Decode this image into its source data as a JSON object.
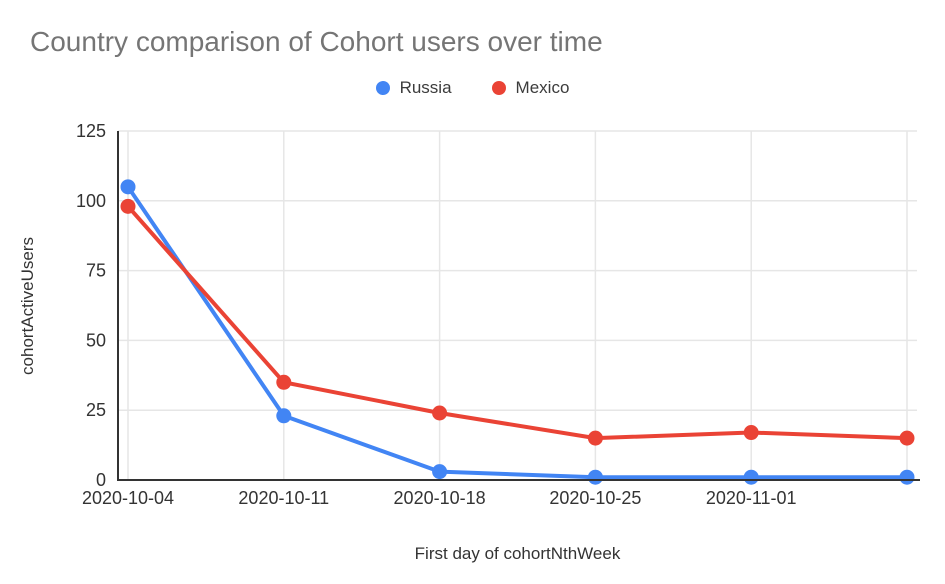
{
  "chart": {
    "title": "Country comparison of Cohort users over time"
  },
  "chart_data": {
    "type": "line",
    "title": "Country comparison of Cohort users over time",
    "x_labels": [
      "2020-10-04",
      "2020-10-11",
      "2020-10-18",
      "2020-10-25",
      "2020-11-01",
      ""
    ],
    "series": [
      {
        "name": "Russia",
        "color": "#4285F4",
        "values": [
          105,
          23,
          3,
          1,
          1,
          1
        ]
      },
      {
        "name": "Mexico",
        "color": "#EA4335",
        "values": [
          98,
          35,
          24,
          15,
          17,
          15
        ]
      }
    ],
    "xlabel": "First day of cohortNthWeek",
    "ylabel": "cohortActiveUsers",
    "ylim": [
      0,
      125
    ],
    "yticks": [
      0,
      25,
      50,
      75,
      100,
      125
    ],
    "grid": true,
    "legend_position": "top"
  },
  "colors": {
    "title_text": "#757575",
    "axis_line": "#333333",
    "tick_text": "#333333",
    "gridline": "#e6e6e6",
    "legend_text": "#3c3c3c"
  }
}
